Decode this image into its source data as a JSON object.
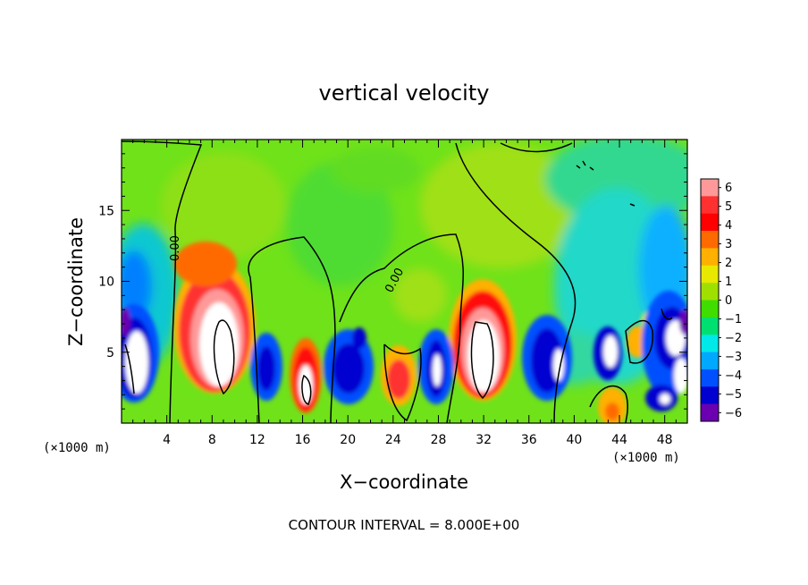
{
  "chart_data": {
    "type": "heatmap",
    "title": "vertical velocity",
    "xlabel": "X−coordinate",
    "ylabel": "Z−coordinate",
    "x_unit_label": "(×1000 m)",
    "xlim": [
      0,
      50
    ],
    "ylim": [
      0,
      20
    ],
    "x_ticks": [
      4,
      8,
      12,
      16,
      20,
      24,
      28,
      32,
      36,
      40,
      44,
      48
    ],
    "y_ticks": [
      5,
      10,
      15
    ],
    "contour_interval_text": "CONTOUR INTERVAL = 8.000E+00",
    "contour_label": "0.00",
    "colorbar": {
      "range": [
        -6,
        6
      ],
      "labels": [
        "6",
        "5",
        "4",
        "3",
        "2",
        "1",
        "0",
        "−1",
        "−2",
        "−3",
        "−4",
        "−5",
        "−6"
      ],
      "colors": [
        "#ff9999",
        "#ff3030",
        "#ff0000",
        "#ff6a00",
        "#ffb000",
        "#e8e800",
        "#a0e000",
        "#40dd00",
        "#00e070",
        "#00e8e8",
        "#00a8ff",
        "#0050ff",
        "#0000d0",
        "#6a00b0"
      ]
    },
    "extremes": {
      "above_range_color": "#ffffff",
      "below_range_color": "#ffffff"
    },
    "features": [
      {
        "kind": "updraft",
        "x": 8.5,
        "z": 4.5,
        "value": 9
      },
      {
        "kind": "updraft",
        "x": 16.5,
        "z": 2.8,
        "value": 7
      },
      {
        "kind": "updraft",
        "x": 24.0,
        "z": 3.2,
        "value": 4
      },
      {
        "kind": "updraft",
        "x": 31.8,
        "z": 5.0,
        "value": 9
      },
      {
        "kind": "updraft",
        "x": 43.5,
        "z": 1.5,
        "value": 3
      },
      {
        "kind": "updraft",
        "x": 45.2,
        "z": 5.5,
        "value": 3
      },
      {
        "kind": "downdraft",
        "x": 0.8,
        "z": 4.5,
        "value": -9
      },
      {
        "kind": "downdraft",
        "x": 14.0,
        "z": 4.0,
        "value": -5
      },
      {
        "kind": "downdraft",
        "x": 20.0,
        "z": 3.8,
        "value": -6
      },
      {
        "kind": "downdraft",
        "x": 27.5,
        "z": 3.8,
        "value": -7
      },
      {
        "kind": "downdraft",
        "x": 38.5,
        "z": 4.2,
        "value": -8
      },
      {
        "kind": "downdraft",
        "x": 43.0,
        "z": 5.0,
        "value": -8
      },
      {
        "kind": "downdraft",
        "x": 47.5,
        "z": 5.8,
        "value": -9
      },
      {
        "kind": "downdraft",
        "x": 48.0,
        "z": 2.0,
        "value": -5
      }
    ]
  }
}
